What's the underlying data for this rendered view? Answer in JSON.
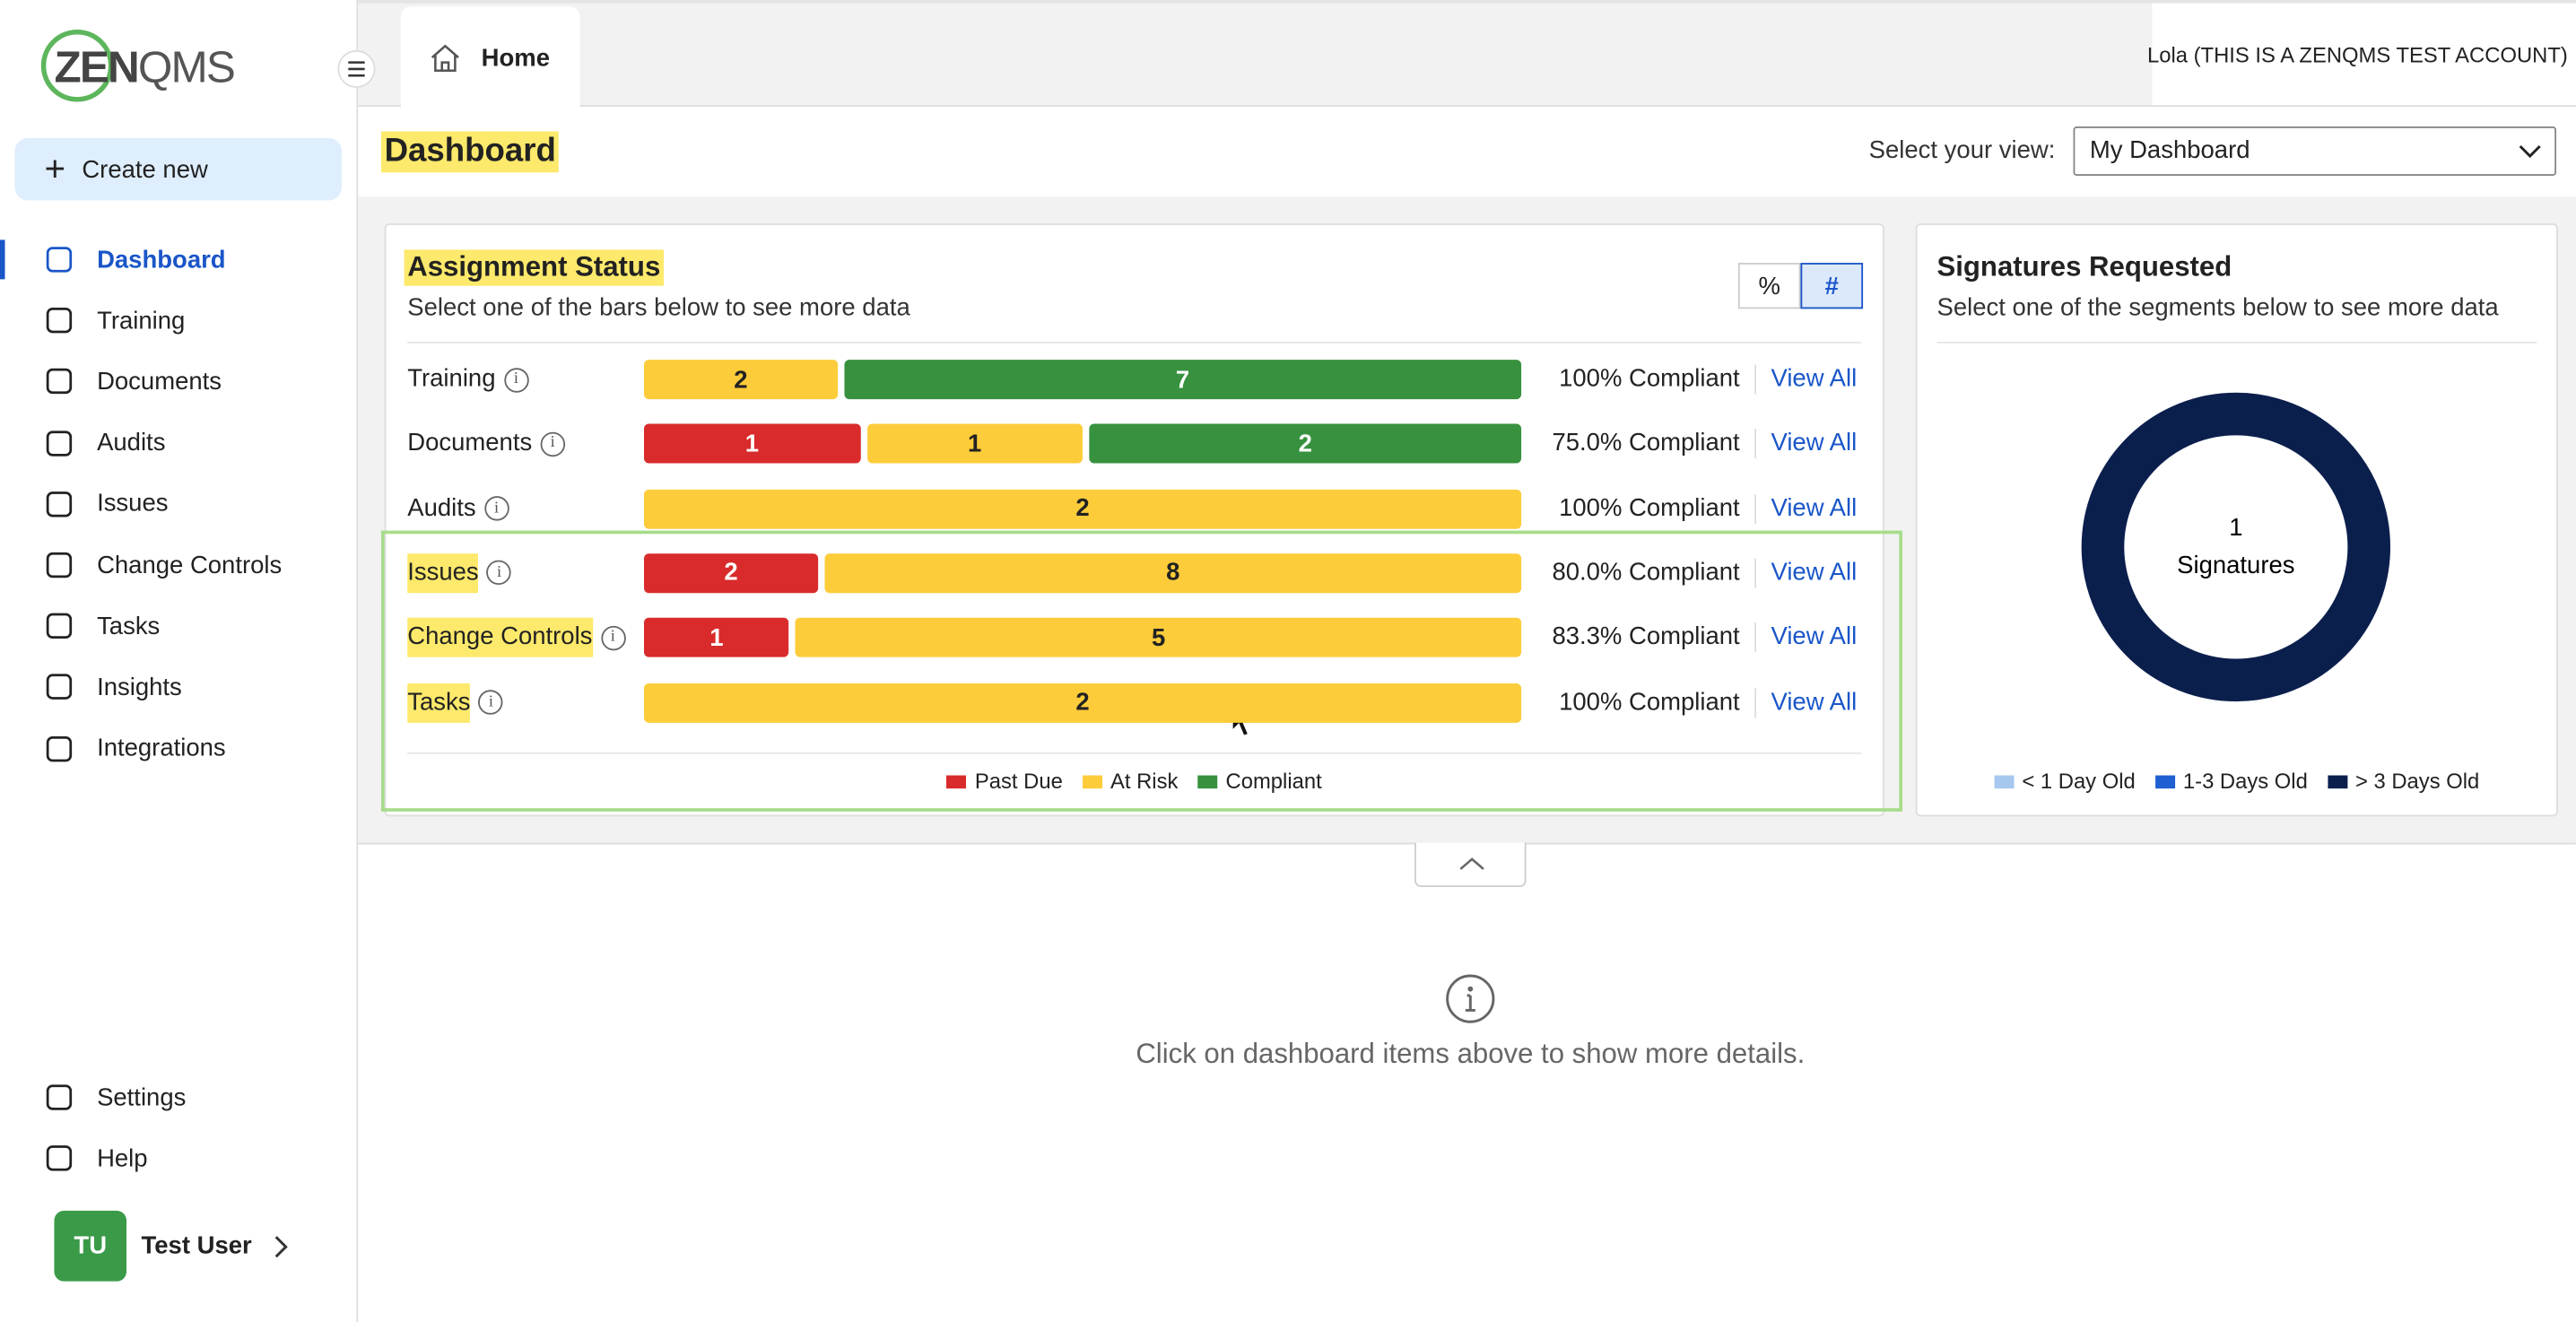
{
  "logo": {
    "prefix": "ZEN",
    "suffix": "QMS"
  },
  "sidebar": {
    "create_new": "Create new",
    "nav": [
      "Dashboard",
      "Training",
      "Documents",
      "Audits",
      "Issues",
      "Change Controls",
      "Tasks",
      "Insights",
      "Integrations"
    ],
    "active": "Dashboard",
    "footer_nav": [
      "Settings",
      "Help"
    ],
    "user": {
      "initials": "TU",
      "name": "Test User"
    }
  },
  "tabs": [
    "Home"
  ],
  "account": "Lola (THIS IS A ZENQMS TEST ACCOUNT)",
  "header": {
    "title": "Dashboard",
    "view_label": "Select your view:",
    "view_value": "My Dashboard"
  },
  "assignment_status": {
    "title": "Assignment Status",
    "subtitle": "Select one of the bars below to see more data",
    "toggles": [
      "%",
      "#"
    ],
    "series": [
      {
        "name": "Past Due",
        "color": "#d92b2b"
      },
      {
        "name": "At Risk",
        "color": "#fdcc3a"
      },
      {
        "name": "Compliant",
        "color": "#37913e"
      }
    ],
    "rows": [
      {
        "label": "Training",
        "values": [
          null,
          2,
          7
        ],
        "compliance": "100% Compliant",
        "link": "View All"
      },
      {
        "label": "Documents",
        "values": [
          1,
          1,
          2
        ],
        "compliance": "75.0% Compliant",
        "link": "View All"
      },
      {
        "label": "Audits",
        "values": [
          null,
          2,
          null
        ],
        "compliance": "100% Compliant",
        "link": "View All"
      },
      {
        "label": "Issues",
        "values": [
          2,
          8,
          null
        ],
        "compliance": "80.0% Compliant",
        "link": "View All"
      },
      {
        "label": "Change Controls",
        "values": [
          1,
          5,
          null
        ],
        "compliance": "83.3% Compliant",
        "link": "View All"
      },
      {
        "label": "Tasks",
        "values": [
          null,
          2,
          null
        ],
        "compliance": "100% Compliant",
        "link": "View All"
      }
    ]
  },
  "signatures": {
    "title": "Signatures Requested",
    "subtitle": "Select one of the segments below to see more data",
    "count": 1,
    "count_label": "Signatures",
    "color": "#0b1f4d",
    "legend": [
      {
        "name": "< 1 Day Old",
        "color": "#a7c8ee"
      },
      {
        "name": "1-3 Days Old",
        "color": "#1f5fd1"
      },
      {
        "name": "> 3 Days Old",
        "color": "#0b1f4d"
      }
    ]
  },
  "details": {
    "message": "Click on dashboard items above to show more details."
  }
}
